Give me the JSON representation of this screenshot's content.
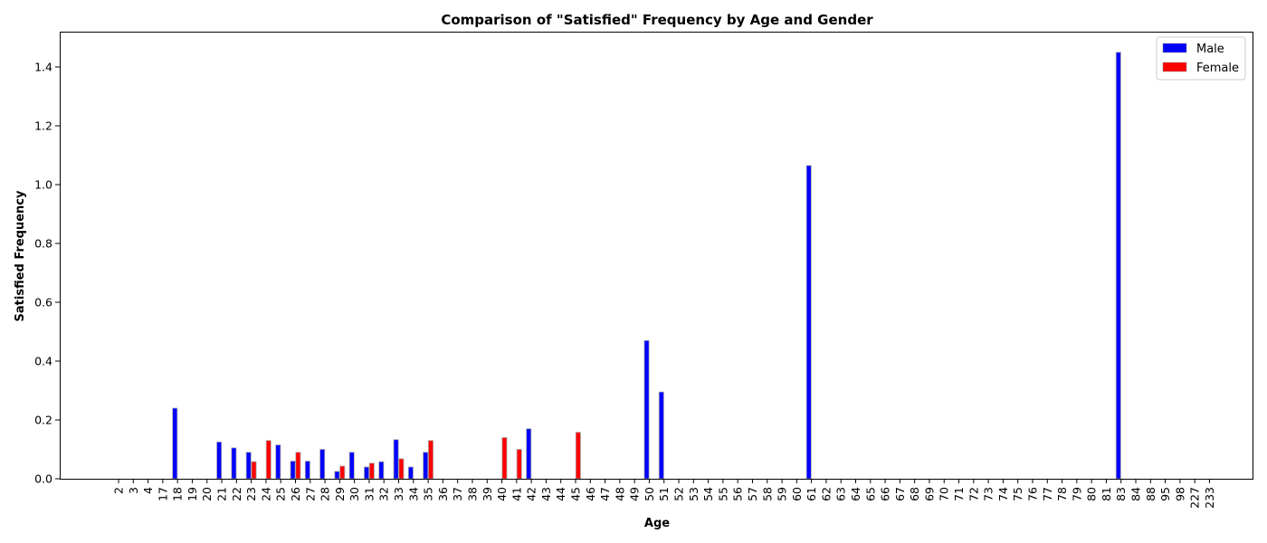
{
  "chart_data": {
    "type": "bar",
    "title": "Comparison of \"Satisfied\" Frequency by Age and Gender",
    "xlabel": "Age",
    "ylabel": "Satisfied Frequency",
    "ylim": [
      0,
      1.52
    ],
    "yticks": [
      "0.0",
      "0.2",
      "0.4",
      "0.6",
      "0.8",
      "1.0",
      "1.2",
      "1.4"
    ],
    "grid": false,
    "legend_position": "top-right",
    "categories": [
      "2",
      "3",
      "4",
      "17",
      "18",
      "19",
      "20",
      "21",
      "22",
      "23",
      "24",
      "25",
      "26",
      "27",
      "28",
      "29",
      "30",
      "31",
      "32",
      "33",
      "34",
      "35",
      "36",
      "37",
      "38",
      "39",
      "40",
      "41",
      "42",
      "43",
      "44",
      "45",
      "46",
      "47",
      "48",
      "49",
      "50",
      "51",
      "52",
      "53",
      "54",
      "55",
      "56",
      "57",
      "58",
      "59",
      "60",
      "61",
      "62",
      "63",
      "64",
      "65",
      "66",
      "67",
      "68",
      "69",
      "70",
      "71",
      "72",
      "73",
      "74",
      "75",
      "76",
      "77",
      "78",
      "79",
      "80",
      "81",
      "83",
      "84",
      "88",
      "95",
      "98",
      "227",
      "233"
    ],
    "series": [
      {
        "name": "Male",
        "color": "#0000ff",
        "values": [
          0,
          0,
          0,
          0,
          0.24,
          0,
          0,
          0.125,
          0.105,
          0.09,
          0,
          0.115,
          0.06,
          0.06,
          0.1,
          0.025,
          0.09,
          0.04,
          0.058,
          0.133,
          0.04,
          0.09,
          0,
          0,
          0,
          0,
          0,
          0,
          0.17,
          0,
          0,
          0,
          0,
          0,
          0,
          0,
          0.47,
          0.295,
          0,
          0,
          0,
          0,
          0,
          0,
          0,
          0,
          0,
          1.065,
          0,
          0,
          0,
          0,
          0,
          0,
          0,
          0,
          0,
          0,
          0,
          0,
          0,
          0,
          0,
          0,
          0,
          0,
          0,
          0,
          1.45,
          0,
          0,
          0,
          0,
          0,
          0
        ]
      },
      {
        "name": "Female",
        "color": "#ff0000",
        "values": [
          0,
          0,
          0,
          0,
          0,
          0,
          0,
          0,
          0,
          0.058,
          0.13,
          0,
          0.09,
          0,
          0,
          0.043,
          0,
          0.053,
          0,
          0.068,
          0,
          0.13,
          0,
          0,
          0,
          0,
          0.14,
          0.1,
          0,
          0,
          0,
          0.158,
          0,
          0,
          0,
          0,
          0,
          0,
          0,
          0,
          0,
          0,
          0,
          0,
          0,
          0,
          0,
          0,
          0,
          0,
          0,
          0,
          0,
          0,
          0,
          0,
          0,
          0,
          0,
          0,
          0,
          0,
          0,
          0,
          0,
          0,
          0,
          0,
          0,
          0,
          0,
          0,
          0,
          0,
          0
        ]
      }
    ]
  }
}
